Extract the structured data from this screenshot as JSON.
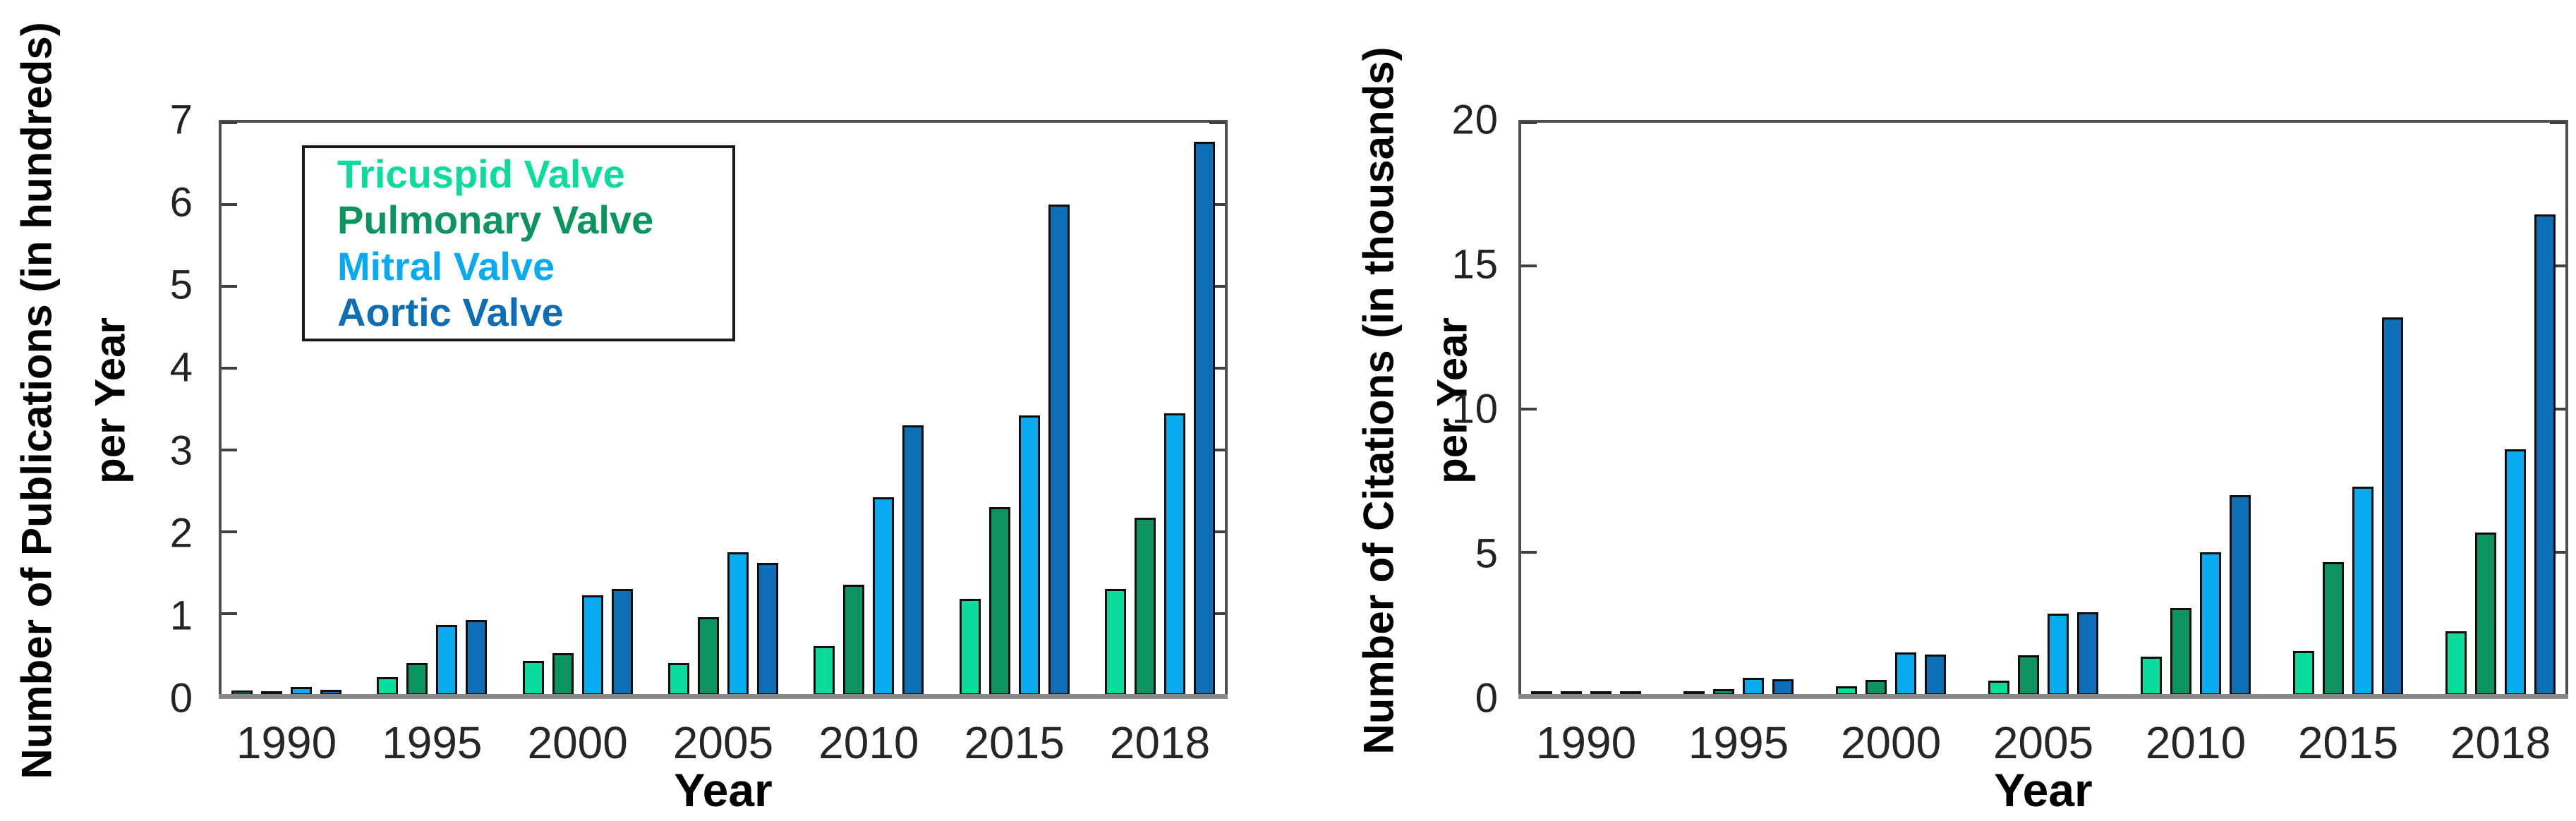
{
  "figure": {
    "background": "#ffffff",
    "frame_color": "#4f4f4f",
    "baseline_color": "#8a8a8a"
  },
  "legend": {
    "entries": [
      {
        "label": "Tricuspid Valve",
        "color": "#0BDC9E"
      },
      {
        "label": "Pulmonary Valve",
        "color": "#0B9460"
      },
      {
        "label": "Mitral Valve",
        "color": "#0AAAF0"
      },
      {
        "label": "Aortic Valve",
        "color": "#0D6EB5"
      }
    ]
  },
  "chart_data": [
    {
      "type": "bar",
      "title": "",
      "ylabel": "Number of Publications (in hundreds)",
      "ylabel_line2": "per Year",
      "xlabel": "Year",
      "categories": [
        "1990",
        "1995",
        "2000",
        "2005",
        "2010",
        "2015",
        "2018"
      ],
      "ylim": [
        0,
        7
      ],
      "yticks": [
        0,
        1,
        2,
        3,
        4,
        5,
        6,
        7
      ],
      "grid": false,
      "legend_position": "upper-left-inside",
      "series": [
        {
          "name": "Tricuspid Valve",
          "color": "#0BDC9E",
          "values": [
            0.06,
            0.22,
            0.42,
            0.4,
            0.6,
            1.18,
            1.3
          ]
        },
        {
          "name": "Pulmonary Valve",
          "color": "#0B9460",
          "values": [
            0.02,
            0.4,
            0.52,
            0.96,
            1.35,
            2.3,
            2.17
          ]
        },
        {
          "name": "Mitral Valve",
          "color": "#0AAAF0",
          "values": [
            0.1,
            0.86,
            1.22,
            1.75,
            2.42,
            3.42,
            3.45
          ]
        },
        {
          "name": "Aortic Valve",
          "color": "#0D6EB5",
          "values": [
            0.07,
            0.92,
            1.3,
            1.62,
            3.3,
            6.0,
            6.77
          ]
        }
      ]
    },
    {
      "type": "bar",
      "title": "",
      "ylabel": "Number of Citations (in thousands)",
      "ylabel_line2": "per Year",
      "xlabel": "Year",
      "categories": [
        "1990",
        "1995",
        "2000",
        "2005",
        "2010",
        "2015",
        "2018"
      ],
      "ylim": [
        0,
        20
      ],
      "yticks": [
        0,
        5,
        10,
        15,
        20
      ],
      "grid": false,
      "legend_position": "none",
      "series": [
        {
          "name": "Tricuspid Valve",
          "color": "#0BDC9E",
          "values": [
            0.03,
            0.1,
            0.32,
            0.52,
            1.35,
            1.55,
            2.25
          ]
        },
        {
          "name": "Pulmonary Valve",
          "color": "#0B9460",
          "values": [
            0.03,
            0.22,
            0.54,
            1.4,
            3.05,
            4.65,
            5.7
          ]
        },
        {
          "name": "Mitral Valve",
          "color": "#0AAAF0",
          "values": [
            0.04,
            0.62,
            1.5,
            2.85,
            5.0,
            7.3,
            8.6
          ]
        },
        {
          "name": "Aortic Valve",
          "color": "#0D6EB5",
          "values": [
            0.03,
            0.57,
            1.43,
            2.9,
            7.0,
            13.2,
            16.8
          ]
        }
      ]
    }
  ]
}
